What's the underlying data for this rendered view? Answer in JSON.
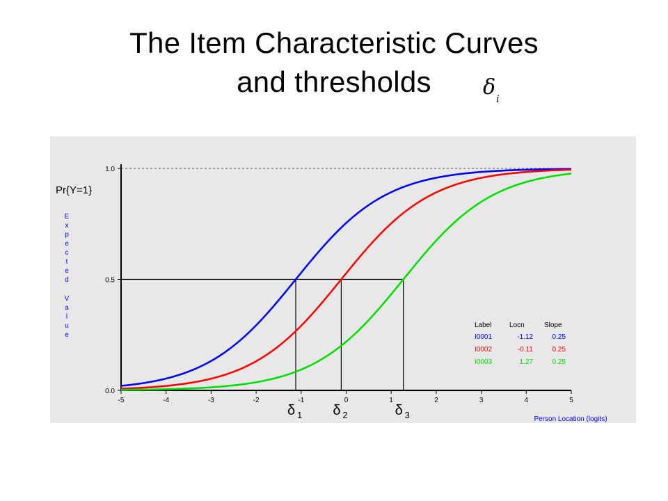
{
  "slide": {
    "title_line1": "The Item Characteristic Curves",
    "title_line2": "and thresholds",
    "title_symbol": "δ",
    "title_symbol_subscript": "i"
  },
  "chart_data": {
    "type": "line",
    "title": "",
    "xlabel": "Person Location (logits)",
    "ylabel": "Expected Value",
    "y_annotation": "Pr{Y=1}",
    "xlim": [
      -5,
      5
    ],
    "ylim": [
      0,
      1
    ],
    "x_ticks": [
      "-5",
      "-4",
      "-3",
      "-2",
      "-1",
      "0",
      "1",
      "2",
      "3",
      "4",
      "5"
    ],
    "y_ticks": [
      "0.0",
      "0.5",
      "1.0"
    ],
    "grid": false,
    "legend_position": "bottom-right",
    "legend_headers": [
      "Label",
      "Locn",
      "Slope"
    ],
    "series": [
      {
        "name": "I0001",
        "locn": "-1.12",
        "slope": "0.25",
        "location": -1.12,
        "color": "#0000ff"
      },
      {
        "name": "I0002",
        "locn": "-0.11",
        "slope": "0.25",
        "location": -0.11,
        "color": "#ff0000"
      },
      {
        "name": "I0003",
        "locn": "1.27",
        "slope": "0.25",
        "location": 1.27,
        "color": "#00dd00"
      }
    ],
    "thresholds": [
      {
        "label": "δ",
        "subscript": "1",
        "x": -1.12
      },
      {
        "label": "δ",
        "subscript": "2",
        "x": -0.11
      },
      {
        "label": "δ",
        "subscript": "3",
        "x": 1.27
      }
    ]
  }
}
